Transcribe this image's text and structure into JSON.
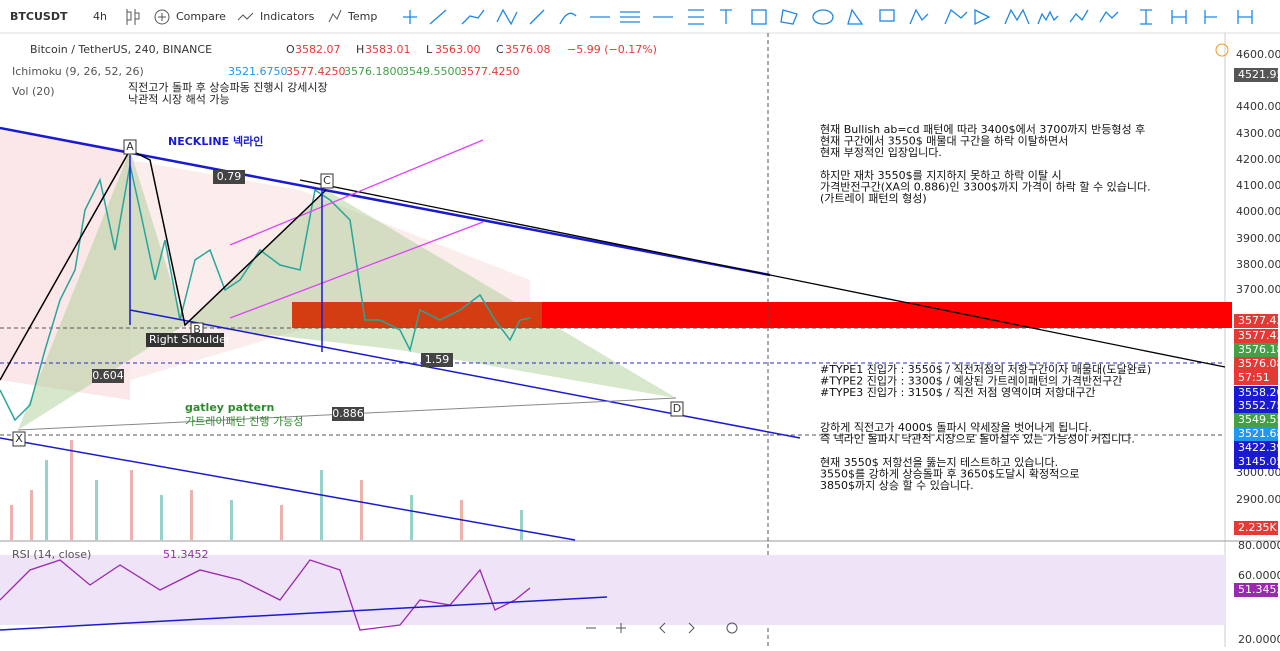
{
  "toolbar": {
    "symbol": "BTCUSDT",
    "interval": "4h",
    "compare": "Compare",
    "indicators": "Indicators",
    "templates": "Temp"
  },
  "legend": {
    "title": "Bitcoin / TetherUS, 240, BINANCE",
    "ohlc": [
      {
        "label": "O",
        "value": "3582.07"
      },
      {
        "label": "H",
        "value": "3583.01"
      },
      {
        "label": "L",
        "value": "3563.00"
      },
      {
        "label": "C",
        "value": "3576.08"
      }
    ],
    "change": "−5.99 (−0.17%)"
  },
  "ichimoku": {
    "label": "Ichimoku (9, 26, 52, 26)",
    "values": [
      "3521.6750",
      "3577.4250",
      "3576.1800",
      "3549.5500",
      "3577.4250"
    ]
  },
  "volume": {
    "label": "Vol (20)"
  },
  "rsi": {
    "label": "RSI (14, close)",
    "value": "51.3452",
    "axis": [
      "80.0000",
      "60.0000",
      "51.3452",
      "20.0000"
    ]
  },
  "price_axis": {
    "ticks": [
      "4600.00",
      "4400.00",
      "4300.00",
      "4200.00",
      "4100.00",
      "4000.00",
      "3900.00",
      "3800.00",
      "3700.00",
      "3000.00",
      "2900.00"
    ],
    "tags": [
      "4521.95",
      "3577.43",
      "3577.43",
      "3576.18",
      "3576.08",
      "57:51",
      "3558.20",
      "3552.75",
      "3549.55",
      "3521.68",
      "3422.39",
      "3145.05",
      "2.235K"
    ]
  },
  "drawings": {
    "points": [
      "A",
      "B",
      "C",
      "D",
      "X"
    ],
    "ratios": [
      "0.79",
      "1.59",
      "0.604",
      "0.886"
    ],
    "right_shoulder": "Right Shoulder",
    "neckline": "NECKLINE 넥라인",
    "gartley": [
      "gatley pattern",
      "가트레이패턴 진행 가능성"
    ],
    "top_note": [
      "직전고가 돌파 후 상승파동 진행시 강세시장",
      "낙관적 시장 해석 가능"
    ]
  },
  "notes": [
    [
      "현재 Bullish ab=cd 패턴에 따라 3400$에서 3700까지 반등형성 후",
      "현재 구간에서 3550$ 매물대 구간을 하락 이탈하면서",
      "현재 부정적인 입장입니다."
    ],
    [
      "하지만 재차 3550$를 지지하지 못하고 하락 이탈 시",
      "가격반전구간(XA의 0.886)인 3300$까지 가격이 하락 할 수 있습니다.",
      "(가트레이 패턴의 형성)"
    ],
    [
      "#TYPE1 진입가 : 3550$ / 직전저점의 저항구간이자 매물대(도달완료)",
      "#TYPE2 진입가 : 3300$ / 예상된 가트레이패턴의 가격반전구간",
      "#TYPE3 진입가 : 3150$ / 직전 저점 영역이며 저항대구간"
    ],
    [
      "강하게 직전고가 4000$ 돌파시 약세장을 벗어나게 됩니다.",
      "즉 넥라인 돌파시 낙관적 시장으로 돌아설수 있는 가능성이 커집니다."
    ],
    [
      "현재 3550$ 저항선을 뚫는지 테스트하고 있습니다.",
      "3550$를 강하게 상승돌파 후  3650$도달시 확정적으로",
      "3850$까지 상승 할 수 있습니다."
    ]
  ]
}
